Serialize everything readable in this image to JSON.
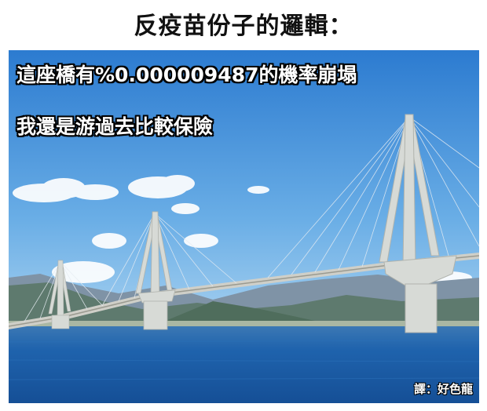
{
  "title": "反疫苗份子的邏輯：",
  "captions": {
    "line1": "這座橋有%0.000009487的機率崩塌",
    "line2": "我還是游過去比較保險"
  },
  "credit": "譯：好色龍",
  "colors": {
    "sky_top": "#2f7fd0",
    "sky_bottom": "#8fc2ea",
    "sea": "#1a5ea8",
    "bridge": "#d9d9d4"
  }
}
